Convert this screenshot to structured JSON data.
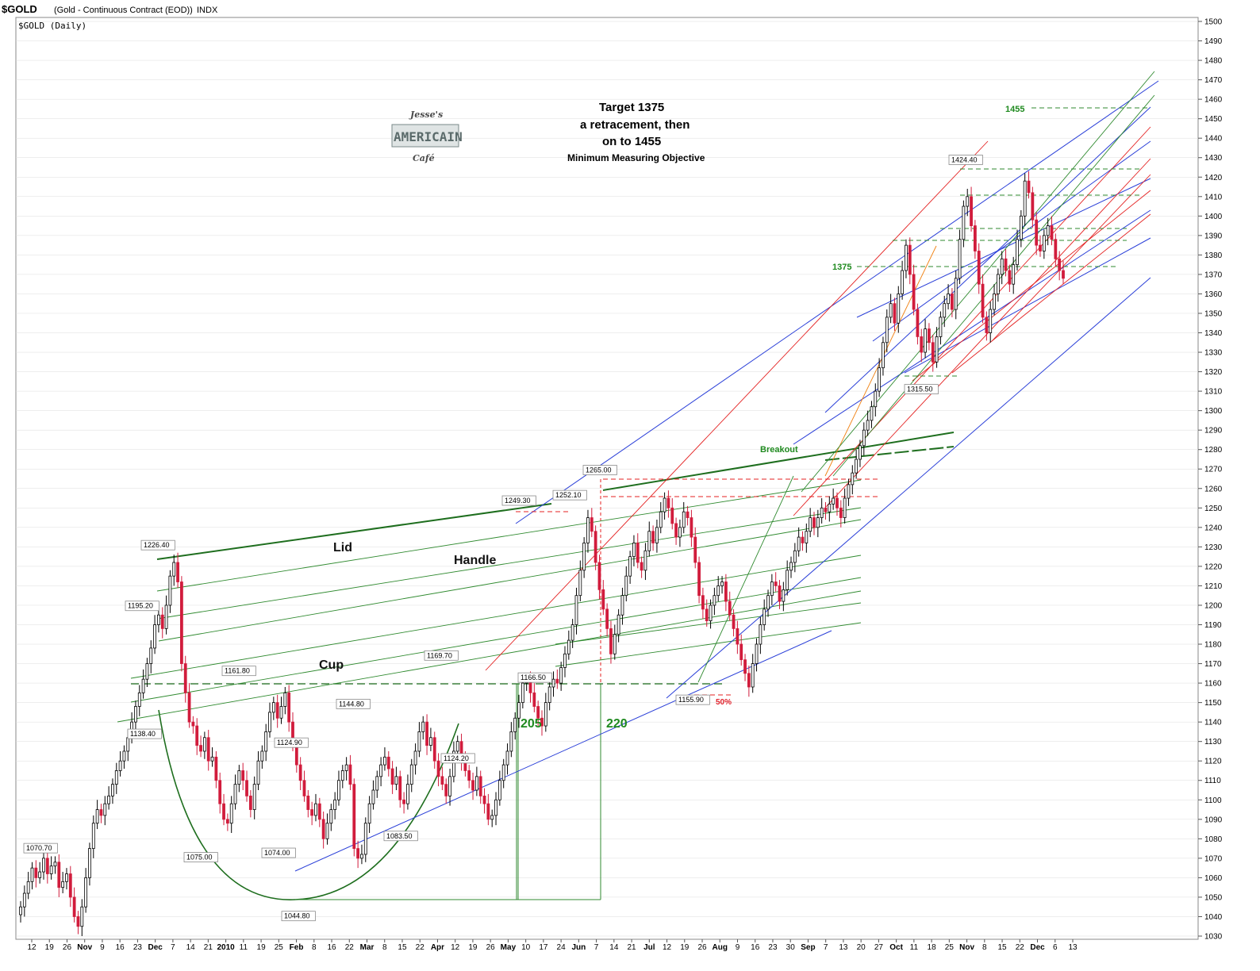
{
  "header": {
    "ticker": "$GOLD",
    "description": "(Gold - Continuous Contract (EOD))",
    "exchange": "INDX",
    "subtitle": "$GOLD (Daily)"
  },
  "logo": {
    "line1": "Jesse's",
    "line2": "AMERICAIN",
    "line3": "Café"
  },
  "target_note": {
    "line1": "Target 1375",
    "line2": "a retracement,  then",
    "line3": "on  to 1455",
    "line4": "Minimum Measuring Objective"
  },
  "pattern_labels": {
    "lid": "Lid",
    "handle": "Handle",
    "cup": "Cup"
  },
  "measure_labels": {
    "m1": "205",
    "m2": "220"
  },
  "level_labels": {
    "l1375": "1375",
    "l1455": "1455",
    "breakout": "Breakout",
    "fifty": "50%"
  },
  "price_labels": [
    "1070.70",
    "1226.40",
    "1195.20",
    "1138.40",
    "1161.80",
    "1075.00",
    "1124.90",
    "1074.00",
    "1044.80",
    "1144.80",
    "1083.50",
    "1169.70",
    "1124.20",
    "1249.30",
    "1252.10",
    "1265.00",
    "1166.50",
    "1155.90",
    "1424.40",
    "1315.50"
  ],
  "colors": {
    "up": "#ffffff",
    "down": "#d11c3c",
    "green": "#2f8a2f",
    "blue": "#2a3fd8",
    "red": "#e42020",
    "orange": "#f08010",
    "grid": "#dddddd"
  },
  "chart_data": {
    "type": "candlestick",
    "title": "$GOLD (Gold - Continuous Contract (EOD)) INDX",
    "subtitle": "$GOLD (Daily)",
    "ylim": [
      1030,
      1500
    ],
    "y_ticks": [
      1030,
      1040,
      1050,
      1060,
      1070,
      1080,
      1090,
      1100,
      1110,
      1120,
      1130,
      1140,
      1150,
      1160,
      1170,
      1180,
      1190,
      1200,
      1210,
      1220,
      1230,
      1240,
      1250,
      1260,
      1270,
      1280,
      1290,
      1300,
      1310,
      1320,
      1330,
      1340,
      1350,
      1360,
      1370,
      1380,
      1390,
      1400,
      1410,
      1420,
      1430,
      1440,
      1450,
      1460,
      1470,
      1480,
      1490,
      1500
    ],
    "x_ticks": [
      "12",
      "19",
      "26",
      "Nov",
      "9",
      "16",
      "23",
      "Dec",
      "7",
      "14",
      "21",
      "2010",
      "11",
      "19",
      "25",
      "Feb",
      "8",
      "16",
      "22",
      "Mar",
      "8",
      "15",
      "22",
      "Apr",
      "12",
      "19",
      "26",
      "May",
      "10",
      "17",
      "24",
      "Jun",
      "7",
      "14",
      "21",
      "Jul",
      "12",
      "19",
      "26",
      "Aug",
      "9",
      "16",
      "23",
      "30",
      "Sep",
      "7",
      "13",
      "20",
      "27",
      "Oct",
      "11",
      "18",
      "25",
      "Nov",
      "8",
      "15",
      "22",
      "Dec",
      "6",
      "13"
    ],
    "bold_x_ticks": [
      "Nov",
      "Dec",
      "2010",
      "Feb",
      "Mar",
      "Apr",
      "May",
      "Jun",
      "Jul",
      "Aug",
      "Sep",
      "Oct"
    ],
    "closes": [
      1045,
      1052,
      1058,
      1065,
      1060,
      1063,
      1070,
      1062,
      1066,
      1068,
      1055,
      1058,
      1062,
      1050,
      1040,
      1035,
      1045,
      1060,
      1075,
      1088,
      1095,
      1092,
      1098,
      1102,
      1108,
      1115,
      1120,
      1125,
      1132,
      1140,
      1148,
      1155,
      1162,
      1170,
      1178,
      1190,
      1195,
      1188,
      1200,
      1215,
      1222,
      1212,
      1170,
      1155,
      1140,
      1138,
      1128,
      1125,
      1132,
      1120,
      1122,
      1110,
      1098,
      1090,
      1088,
      1098,
      1108,
      1115,
      1110,
      1102,
      1095,
      1108,
      1120,
      1125,
      1135,
      1145,
      1150,
      1142,
      1148,
      1155,
      1140,
      1128,
      1118,
      1110,
      1102,
      1095,
      1092,
      1098,
      1090,
      1080,
      1088,
      1095,
      1100,
      1110,
      1115,
      1118,
      1108,
      1075,
      1070,
      1072,
      1088,
      1098,
      1105,
      1112,
      1118,
      1122,
      1116,
      1108,
      1112,
      1100,
      1098,
      1108,
      1118,
      1125,
      1135,
      1140,
      1128,
      1132,
      1120,
      1112,
      1108,
      1102,
      1112,
      1125,
      1130,
      1120,
      1115,
      1110,
      1105,
      1112,
      1102,
      1098,
      1090,
      1092,
      1100,
      1110,
      1118,
      1125,
      1135,
      1142,
      1150,
      1160,
      1162,
      1155,
      1148,
      1142,
      1138,
      1150,
      1158,
      1162,
      1160,
      1168,
      1175,
      1182,
      1190,
      1205,
      1218,
      1232,
      1245,
      1238,
      1222,
      1208,
      1198,
      1188,
      1175,
      1185,
      1195,
      1205,
      1215,
      1225,
      1232,
      1222,
      1218,
      1228,
      1238,
      1232,
      1240,
      1248,
      1255,
      1250,
      1242,
      1235,
      1240,
      1248,
      1245,
      1235,
      1222,
      1205,
      1198,
      1192,
      1200,
      1205,
      1210,
      1212,
      1202,
      1195,
      1188,
      1180,
      1172,
      1165,
      1158,
      1170,
      1180,
      1190,
      1198,
      1205,
      1212,
      1210,
      1202,
      1208,
      1218,
      1222,
      1228,
      1235,
      1232,
      1238,
      1245,
      1240,
      1245,
      1250,
      1248,
      1252,
      1255,
      1250,
      1245,
      1255,
      1262,
      1268,
      1275,
      1282,
      1290,
      1295,
      1302,
      1310,
      1322,
      1335,
      1348,
      1355,
      1345,
      1360,
      1372,
      1385,
      1370,
      1352,
      1338,
      1330,
      1342,
      1335,
      1325,
      1338,
      1348,
      1355,
      1360,
      1352,
      1368,
      1388,
      1405,
      1410,
      1395,
      1382,
      1365,
      1348,
      1340,
      1352,
      1360,
      1370,
      1378,
      1372,
      1365,
      1375,
      1388,
      1400,
      1418,
      1412,
      1398,
      1385,
      1382,
      1390,
      1395,
      1388,
      1378,
      1372,
      1368
    ]
  }
}
